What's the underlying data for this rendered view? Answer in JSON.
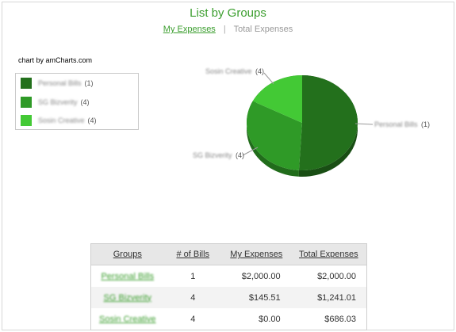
{
  "header": {
    "title": "List by Groups",
    "tabs": [
      {
        "label": "My Expenses",
        "active": true
      },
      {
        "label": "Total Expenses",
        "active": false
      }
    ],
    "separator": "|"
  },
  "chart_credit": "chart by amCharts.com",
  "colors": {
    "accent": "#3b9e2e",
    "slice_dark": "#23701c",
    "slice_mid": "#2f9a27",
    "slice_light": "#43c935"
  },
  "chart_data": {
    "type": "pie",
    "slices": [
      {
        "label": "Personal Bills",
        "count": 1,
        "value": 2000.0,
        "color": "#23701c"
      },
      {
        "label": "SG Bizverity",
        "count": 4,
        "value": 1241.01,
        "color": "#2f9a27"
      },
      {
        "label": "Sosin Creative",
        "count": 4,
        "value": 686.03,
        "color": "#43c935"
      }
    ]
  },
  "legend": [
    {
      "name": "Personal Bills",
      "count": "(1)",
      "color": "#23701c"
    },
    {
      "name": "SG Bizverity",
      "count": "(4)",
      "color": "#2f9a27"
    },
    {
      "name": "Sosin Creative",
      "count": "(4)",
      "color": "#43c935"
    }
  ],
  "pie_labels": [
    {
      "name": "Sosin Creative",
      "count": "(4)"
    },
    {
      "name": "Personal Bills",
      "count": "(1)"
    },
    {
      "name": "SG Bizverity",
      "count": "(4)"
    }
  ],
  "table": {
    "headers": [
      "Groups",
      "# of Bills",
      "My Expenses",
      "Total Expenses"
    ],
    "rows": [
      {
        "group": "Personal Bills",
        "bills": "1",
        "my": "$2,000.00",
        "total": "$2,000.00"
      },
      {
        "group": "SG Bizverity",
        "bills": "4",
        "my": "$145.51",
        "total": "$1,241.01"
      },
      {
        "group": "Sosin Creative",
        "bills": "4",
        "my": "$0.00",
        "total": "$686.03"
      }
    ]
  }
}
